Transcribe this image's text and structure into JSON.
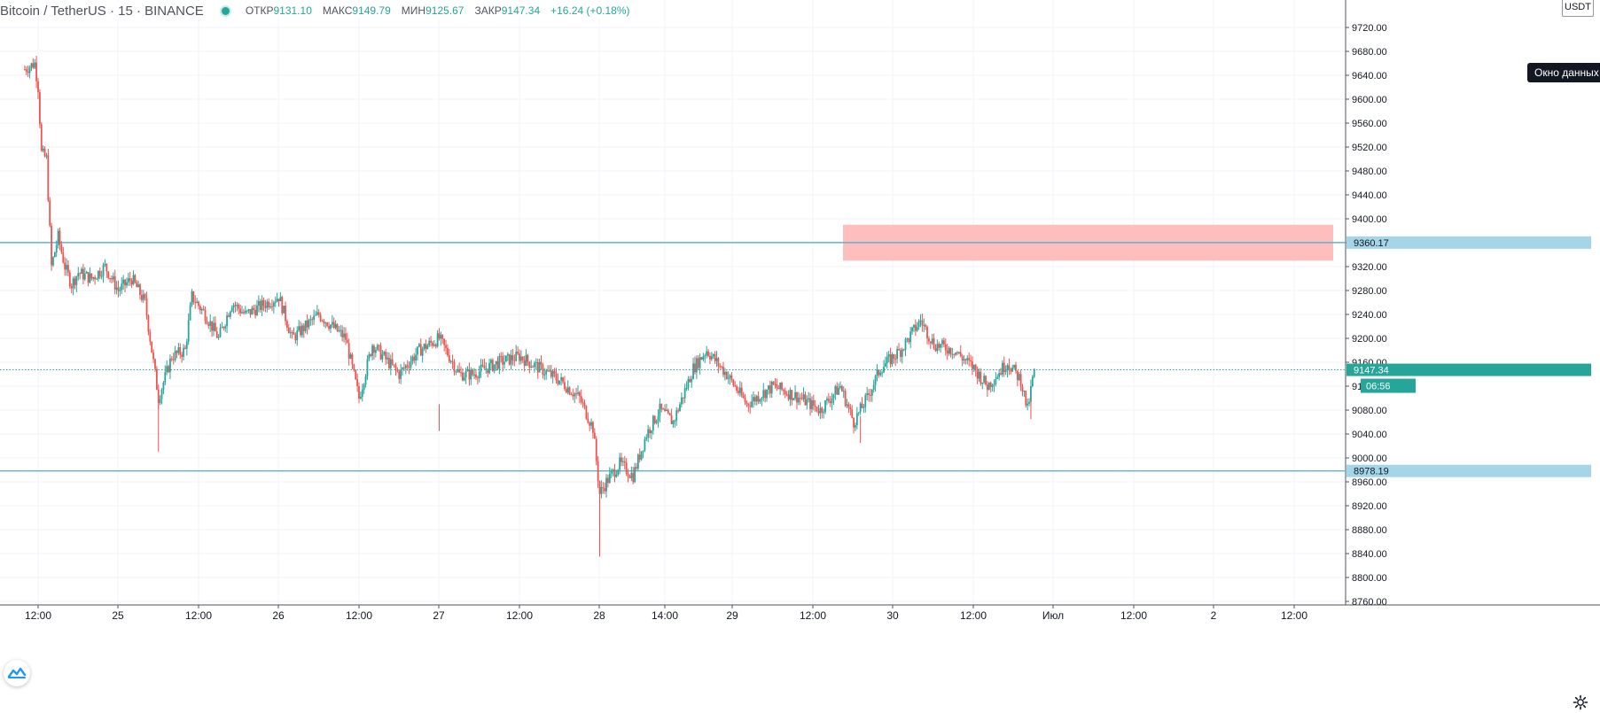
{
  "legend": {
    "symbol": "Bitcoin / TetherUS · 15 · BINANCE",
    "open_label": "ОТКР",
    "open": "9131.10",
    "high_label": "МАКС",
    "high": "9149.79",
    "low_label": "МИН",
    "low": "9125.67",
    "close_label": "ЗАКР",
    "close": "9147.34",
    "change": "+16.24 (+0.18%)"
  },
  "price_axis": {
    "currency": "USDT",
    "ticks": [
      "9720.00",
      "9680.00",
      "9640.00",
      "9600.00",
      "9560.00",
      "9520.00",
      "9480.00",
      "9440.00",
      "9400.00",
      "9360.00",
      "9320.00",
      "9280.00",
      "9240.00",
      "9200.00",
      "9160.00",
      "9120.00",
      "9080.00",
      "9040.00",
      "9000.00",
      "8960.00",
      "8920.00",
      "8880.00",
      "8840.00",
      "8800.00",
      "8760.00"
    ]
  },
  "time_axis": {
    "ticks": [
      "12:00",
      "25",
      "12:00",
      "26",
      "12:00",
      "27",
      "12:00",
      "28",
      "14:00",
      "29",
      "12:00",
      "30",
      "12:00",
      "Июл",
      "12:00",
      "2",
      "12:00"
    ]
  },
  "tooltip": "Окно данных",
  "lines": {
    "resistance": "9360.17",
    "support": "8978.19",
    "last_price": "9147.34",
    "countdown": "06:56"
  },
  "colors": {
    "up": "#26a69a",
    "down": "#ef5350",
    "hline": "#5fb3d1",
    "zone": "#ffb3b3",
    "last": "#26a69a"
  },
  "chart_data": {
    "type": "candlestick",
    "series_label": "Bitcoin / TetherUS",
    "timeframe": "15",
    "ylim": [
      8740,
      9760
    ],
    "horizontal_lines": [
      9360.17,
      8978.19
    ],
    "zone": {
      "from_time": "29 12:00",
      "to_time": "2 12:00",
      "low": 9330,
      "high": 9390
    },
    "anchors": [
      [
        "24 10:00",
        9650
      ],
      [
        "24 11:30",
        9660
      ],
      [
        "24 12:00",
        9620
      ],
      [
        "24 12:30",
        9510
      ],
      [
        "24 13:15",
        9500
      ],
      [
        "24 14:00",
        9320
      ],
      [
        "24 15:00",
        9370
      ],
      [
        "24 16:00",
        9320
      ],
      [
        "24 17:00",
        9290
      ],
      [
        "24 18:00",
        9310
      ],
      [
        "24 20:00",
        9300
      ],
      [
        "24 22:00",
        9320
      ],
      [
        "25 00:00",
        9280
      ],
      [
        "25 02:00",
        9300
      ],
      [
        "25 04:00",
        9260
      ],
      [
        "25 06:00",
        9100
      ],
      [
        "25 08:00",
        9170
      ],
      [
        "25 10:00",
        9180
      ],
      [
        "25 11:00",
        9270
      ],
      [
        "25 13:00",
        9240
      ],
      [
        "25 15:00",
        9200
      ],
      [
        "25 17:00",
        9260
      ],
      [
        "25 19:00",
        9240
      ],
      [
        "26 00:00",
        9270
      ],
      [
        "26 02:00",
        9200
      ],
      [
        "26 06:00",
        9240
      ],
      [
        "26 10:00",
        9200
      ],
      [
        "26 12:00",
        9100
      ],
      [
        "26 14:00",
        9190
      ],
      [
        "26 18:00",
        9140
      ],
      [
        "26 21:00",
        9180
      ],
      [
        "27 00:00",
        9200
      ],
      [
        "27 03:00",
        9140
      ],
      [
        "27 05:00",
        9140
      ],
      [
        "27 09:00",
        9160
      ],
      [
        "27 12:00",
        9170
      ],
      [
        "27 15:00",
        9150
      ],
      [
        "27 18:00",
        9130
      ],
      [
        "27 21:00",
        9100
      ],
      [
        "27 23:00",
        9050
      ],
      [
        "28 00:00",
        8940
      ],
      [
        "28 01:00",
        8960
      ],
      [
        "28 03:00",
        8990
      ],
      [
        "28 05:00",
        8970
      ],
      [
        "28 07:00",
        9040
      ],
      [
        "28 09:00",
        9080
      ],
      [
        "28 11:00",
        9060
      ],
      [
        "28 14:00",
        9150
      ],
      [
        "28 16:00",
        9180
      ],
      [
        "28 19:00",
        9140
      ],
      [
        "28 22:00",
        9090
      ],
      [
        "29 02:00",
        9120
      ],
      [
        "29 06:00",
        9100
      ],
      [
        "29 09:00",
        9080
      ],
      [
        "29 12:00",
        9120
      ],
      [
        "29 14:00",
        9060
      ],
      [
        "29 16:00",
        9100
      ],
      [
        "29 18:00",
        9150
      ],
      [
        "29 21:00",
        9180
      ],
      [
        "30 00:00",
        9230
      ],
      [
        "30 02:00",
        9190
      ],
      [
        "30 05:00",
        9180
      ],
      [
        "30 08:00",
        9150
      ],
      [
        "30 10:00",
        9120
      ],
      [
        "30 13:00",
        9160
      ],
      [
        "30 15:00",
        9130
      ],
      [
        "30 16:00",
        9080
      ],
      [
        "30 17:00",
        9147
      ]
    ]
  }
}
